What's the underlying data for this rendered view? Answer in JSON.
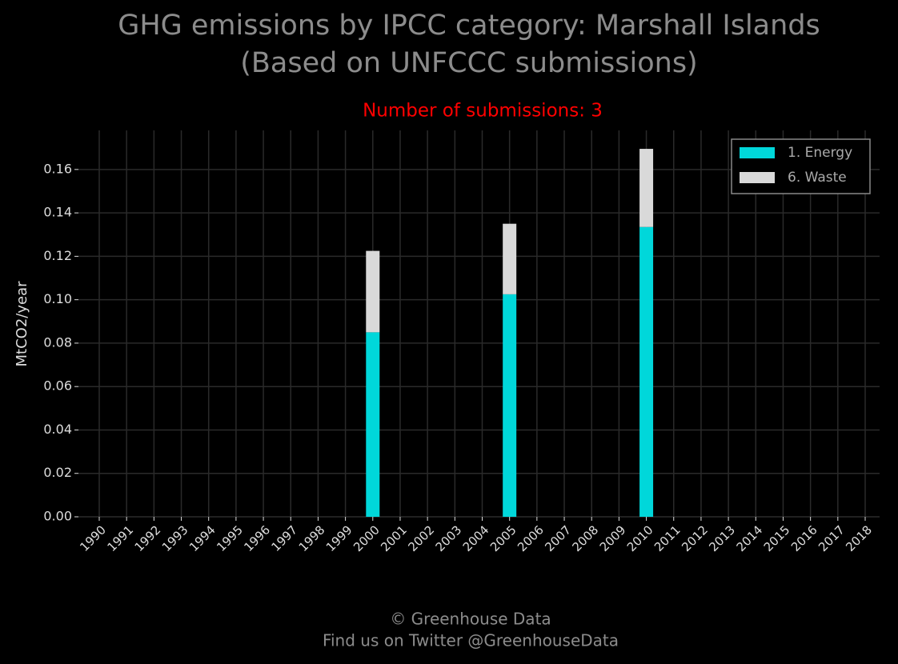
{
  "chart_data": {
    "type": "bar",
    "stacked": true,
    "title": "GHG emissions by IPCC category: Marshall Islands",
    "title_line2": "(Based on UNFCCC submissions)",
    "subtitle": "Number of submissions: 3",
    "y_label": "MtCO2/year",
    "footer": "© Greenhouse Data",
    "footer_line2": "Find us on Twitter @GreenhouseData",
    "categories": [
      "1990",
      "1991",
      "1992",
      "1993",
      "1994",
      "1995",
      "1996",
      "1997",
      "1998",
      "1999",
      "2000",
      "2001",
      "2002",
      "2003",
      "2004",
      "2005",
      "2006",
      "2007",
      "2008",
      "2009",
      "2010",
      "2011",
      "2012",
      "2013",
      "2014",
      "2015",
      "2016",
      "2017",
      "2018"
    ],
    "series": [
      {
        "name": "1. Energy",
        "color": "#00d7da",
        "values": [
          null,
          null,
          null,
          null,
          null,
          null,
          null,
          null,
          null,
          null,
          0.085,
          null,
          null,
          null,
          null,
          0.1025,
          null,
          null,
          null,
          null,
          0.1335,
          null,
          null,
          null,
          null,
          null,
          null,
          null,
          null
        ]
      },
      {
        "name": "6. Waste",
        "color": "#d9d9d9",
        "values": [
          null,
          null,
          null,
          null,
          null,
          null,
          null,
          null,
          null,
          null,
          0.0375,
          null,
          null,
          null,
          null,
          0.0325,
          null,
          null,
          null,
          null,
          0.036,
          null,
          null,
          null,
          null,
          null,
          null,
          null,
          null
        ]
      }
    ],
    "ylim": [
      0,
      0.178
    ],
    "yticks": [
      {
        "value": 0,
        "label": "0.00"
      },
      0.02,
      0.04,
      0.06,
      0.08,
      {
        "value": 0.1,
        "label": "0.10"
      },
      0.12,
      0.14,
      0.16
    ],
    "grid": true,
    "legend": "upper right"
  }
}
